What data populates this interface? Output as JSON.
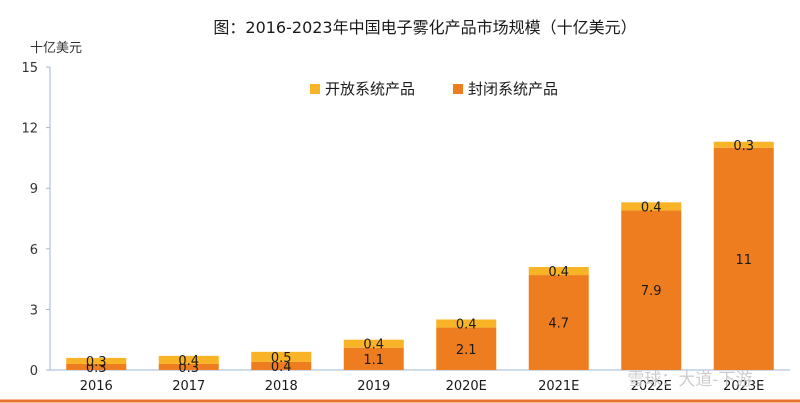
{
  "chart_data": {
    "type": "bar",
    "stacked": true,
    "title": "图：2016-2023年中国电子雾化产品市场规模（十亿美元）",
    "ylabel": "十亿美元",
    "xlabel": "",
    "ylim": [
      0,
      15
    ],
    "yticks": [
      0,
      3,
      6,
      9,
      12,
      15
    ],
    "grid": false,
    "legend_position": "top",
    "categories": [
      "2016",
      "2017",
      "2018",
      "2019",
      "2020E",
      "2021E",
      "2022E",
      "2023E"
    ],
    "series": [
      {
        "name": "封闭系统产品",
        "color": "#ed7d1f",
        "values": [
          0.3,
          0.3,
          0.4,
          1.1,
          2.1,
          4.7,
          7.9,
          11
        ]
      },
      {
        "name": "开放系统产品",
        "color": "#f8b326",
        "values": [
          0.3,
          0.4,
          0.5,
          0.4,
          0.4,
          0.4,
          0.4,
          0.3
        ]
      }
    ],
    "legend_order": [
      1,
      0
    ]
  },
  "watermark": {
    "text": "雪球：大道-下游"
  },
  "colors": {
    "axis": "#9fb7d8",
    "footer_line": "#e8702a"
  }
}
